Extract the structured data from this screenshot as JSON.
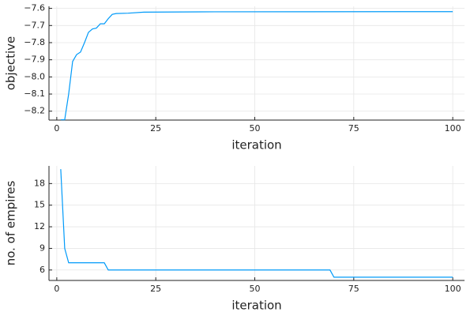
{
  "chart_data": [
    {
      "type": "line",
      "xlabel": "iteration",
      "ylabel": "objective",
      "xlim": [
        -1.97,
        102.97
      ],
      "xticks": [
        0,
        25,
        50,
        75,
        100
      ],
      "ylim": [
        -8.252,
        -7.588
      ],
      "yticks": [
        {
          "value": -8.2,
          "label": "−8.2"
        },
        {
          "value": -8.1,
          "label": "−8.1"
        },
        {
          "value": -8.0,
          "label": "−8.0"
        },
        {
          "value": -7.9,
          "label": "−7.9"
        },
        {
          "value": -7.8,
          "label": "−7.8"
        },
        {
          "value": -7.7,
          "label": "−7.7"
        },
        {
          "value": -7.6,
          "label": "−7.6"
        }
      ],
      "grid": true,
      "x": [
        1,
        2,
        3,
        4,
        5,
        6,
        7,
        8,
        9,
        10,
        11,
        12,
        13,
        14,
        15,
        18,
        22,
        40,
        100
      ],
      "series": [
        {
          "color": "#009af9",
          "values": [
            -8.25,
            -8.25,
            -8.1,
            -7.91,
            -7.87,
            -7.855,
            -7.8,
            -7.74,
            -7.72,
            -7.715,
            -7.69,
            -7.69,
            -7.66,
            -7.635,
            -7.63,
            -7.628,
            -7.622,
            -7.62,
            -7.619
          ]
        }
      ]
    },
    {
      "type": "line",
      "xlabel": "iteration",
      "ylabel": "no. of empires",
      "xlim": [
        -1.97,
        102.97
      ],
      "xticks": [
        0,
        25,
        50,
        75,
        100
      ],
      "ylim": [
        4.55,
        20.45
      ],
      "yticks": [
        6,
        9,
        12,
        15,
        18
      ],
      "grid": true,
      "x": [
        1,
        2,
        3,
        12,
        13,
        69,
        70,
        100
      ],
      "series": [
        {
          "color": "#009af9",
          "values": [
            20,
            9,
            7,
            7,
            6,
            6,
            5,
            5
          ]
        }
      ]
    }
  ]
}
